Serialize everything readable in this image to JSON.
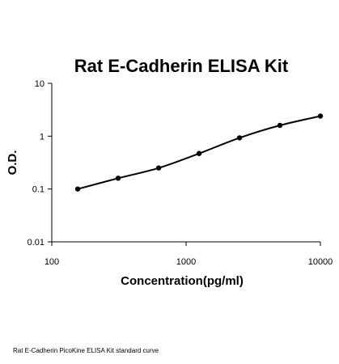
{
  "chart_data": {
    "type": "line",
    "title": "Rat E-Cadherin ELISA Kit",
    "xlabel": "Concentration(pg/ml)",
    "ylabel": "O.D.",
    "x_scale": "log",
    "y_scale": "log",
    "xlim": [
      100,
      10000
    ],
    "ylim": [
      0.01,
      10
    ],
    "x_ticks": [
      {
        "value": 100,
        "label": "100"
      },
      {
        "value": 1000,
        "label": "1000"
      },
      {
        "value": 10000,
        "label": "10000"
      }
    ],
    "y_ticks": [
      {
        "value": 0.01,
        "label": "0.01"
      },
      {
        "value": 0.1,
        "label": "0.1"
      },
      {
        "value": 1,
        "label": "1"
      },
      {
        "value": 10,
        "label": "10"
      }
    ],
    "grid": false,
    "legend": "none",
    "colors": {
      "line": "#000000",
      "marker": "#000000",
      "axis": "#000000"
    },
    "series": [
      {
        "x": [
          156,
          312,
          625,
          1250,
          2500,
          5000,
          10000
        ],
        "y": [
          0.1,
          0.16,
          0.25,
          0.47,
          0.93,
          1.6,
          2.4
        ]
      }
    ]
  },
  "caption": "Rat E-Cadherin PicoKine ELISA Kit standard curve"
}
